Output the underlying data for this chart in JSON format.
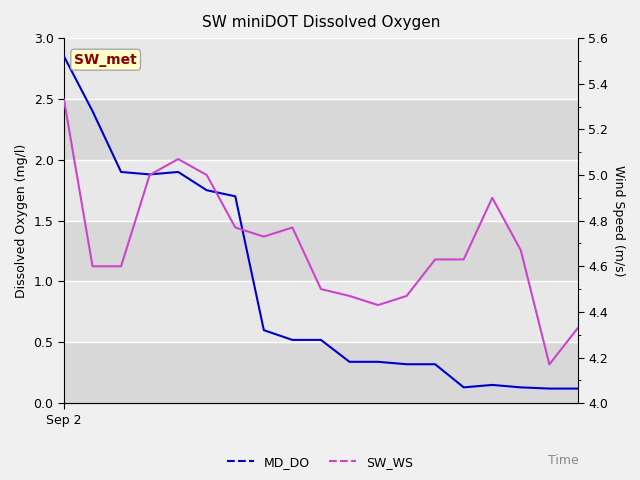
{
  "title": "SW miniDOT Dissolved Oxygen",
  "ylabel_left": "Dissolved Oxygen (mg/l)",
  "ylabel_right": "Wind Speed (m/s)",
  "xlabel": "Time",
  "xtick_label": "Sep 2",
  "annotation_text": "SW_met",
  "annotation_color": "#8B0000",
  "annotation_bg": "#FFFFCC",
  "annotation_edge": "#AAAAAA",
  "ylim_left": [
    0.0,
    3.0
  ],
  "ylim_right": [
    4.0,
    5.6
  ],
  "yticks_left": [
    0.0,
    0.5,
    1.0,
    1.5,
    2.0,
    2.5,
    3.0
  ],
  "yticks_right": [
    4.0,
    4.2,
    4.4,
    4.6,
    4.8,
    5.0,
    5.2,
    5.4,
    5.6
  ],
  "md_do_color": "#0000CD",
  "sw_ws_color": "#CC44CC",
  "md_do_label": "MD_DO",
  "sw_ws_label": "SW_WS",
  "fig_bg_color": "#f0f0f0",
  "plot_bg_light": "#e8e8e8",
  "plot_bg_dark": "#d8d8d8",
  "grid_color": "#ffffff",
  "md_do_x": [
    0,
    1,
    2,
    3,
    4,
    5,
    6,
    7,
    8,
    9,
    10,
    11,
    12,
    13,
    14,
    15,
    16,
    17,
    18
  ],
  "md_do_y": [
    2.85,
    2.4,
    1.9,
    1.88,
    1.9,
    1.75,
    1.7,
    0.6,
    0.52,
    0.52,
    0.34,
    0.34,
    0.32,
    0.32,
    0.13,
    0.15,
    0.13,
    0.12,
    0.12
  ],
  "sw_ws_y": [
    5.33,
    4.6,
    4.6,
    5.0,
    5.07,
    5.0,
    4.77,
    4.73,
    4.77,
    4.5,
    4.47,
    4.43,
    4.47,
    4.63,
    4.63,
    4.9,
    4.67,
    4.17,
    4.33
  ],
  "title_fontsize": 11,
  "axis_label_fontsize": 9,
  "tick_fontsize": 9,
  "legend_fontsize": 9,
  "linewidth": 1.5
}
